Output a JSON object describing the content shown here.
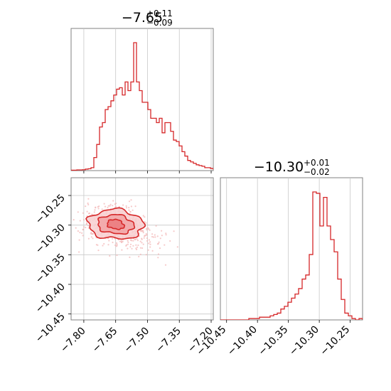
{
  "chart_data": [
    {
      "type": "histogram",
      "panel": "top-left",
      "title": {
        "median": "−7.65",
        "upper": "+0.11",
        "lower": "−0.09"
      },
      "xlim": [
        -7.86,
        -7.19
      ],
      "bin_width": 0.0134,
      "bin_starts": [
        -7.86,
        -7.8466
      ],
      "density": [
        0.003,
        0.003,
        0.005,
        0.005,
        0.006,
        0.01,
        0.013,
        0.02,
        0.09,
        0.18,
        0.3,
        0.33,
        0.42,
        0.44,
        0.48,
        0.52,
        0.56,
        0.57,
        0.52,
        0.61,
        0.55,
        0.61,
        0.88,
        0.61,
        0.55,
        0.47,
        0.47,
        0.42,
        0.36,
        0.36,
        0.33,
        0.36,
        0.26,
        0.33,
        0.33,
        0.27,
        0.21,
        0.2,
        0.17,
        0.13,
        0.1,
        0.07,
        0.06,
        0.05,
        0.04,
        0.035,
        0.03,
        0.02,
        0.02,
        0.015,
        0.01,
        0.01,
        0.01,
        0.01,
        0.007,
        0.006,
        0.005,
        0.004,
        0.003,
        0.003
      ],
      "xticks": [
        -7.8,
        -7.65,
        -7.5,
        -7.35,
        -7.2
      ],
      "grid": true,
      "color": "#d62728"
    },
    {
      "type": "histogram",
      "panel": "bottom-right",
      "title": {
        "median": "−10.30",
        "upper": "+0.01",
        "lower": "−0.02"
      },
      "xlim": [
        -10.46,
        -10.23
      ],
      "bin_width": 0.00575,
      "density": [
        0,
        0,
        0,
        0,
        0,
        0,
        0,
        0,
        0.01,
        0.01,
        0.01,
        0.02,
        0.02,
        0.02,
        0.03,
        0.04,
        0.05,
        0.08,
        0.1,
        0.13,
        0.16,
        0.19,
        0.23,
        0.3,
        0.33,
        0.48,
        0.94,
        0.93,
        0.69,
        0.9,
        0.69,
        0.59,
        0.5,
        0.3,
        0.15,
        0.05,
        0.03,
        0.01,
        0.0,
        0.01
      ],
      "xticks": [
        -10.45,
        -10.4,
        -10.35,
        -10.3,
        -10.25
      ],
      "xtick_labels": [
        "−10.45",
        "−10.40",
        "−10.35",
        "−10.30",
        "−10.25"
      ],
      "grid": true,
      "color": "#d62728"
    },
    {
      "type": "scatter-contour",
      "panel": "bottom-left",
      "xlim": [
        -7.86,
        -7.19
      ],
      "ylim": [
        -10.46,
        -10.22
      ],
      "xticks": [
        -7.8,
        -7.65,
        -7.5,
        -7.35,
        -7.2
      ],
      "xtick_labels": [
        "−7.80",
        "−7.65",
        "−7.50",
        "−7.35",
        "−7.20"
      ],
      "yticks": [
        -10.25,
        -10.3,
        -10.35,
        -10.4,
        -10.45
      ],
      "ytick_labels": [
        "−10.25",
        "−10.30",
        "−10.35",
        "−10.40",
        "−10.45"
      ],
      "center": {
        "x": -7.65,
        "y": -10.298
      },
      "contour_levels": [
        {
          "rx": 0.04,
          "ry": 0.008
        },
        {
          "rx": 0.085,
          "ry": 0.016
        },
        {
          "rx": 0.13,
          "ry": 0.025
        }
      ],
      "grid": true,
      "color": "#d62728",
      "fill_color": "#f4a9aa"
    }
  ]
}
